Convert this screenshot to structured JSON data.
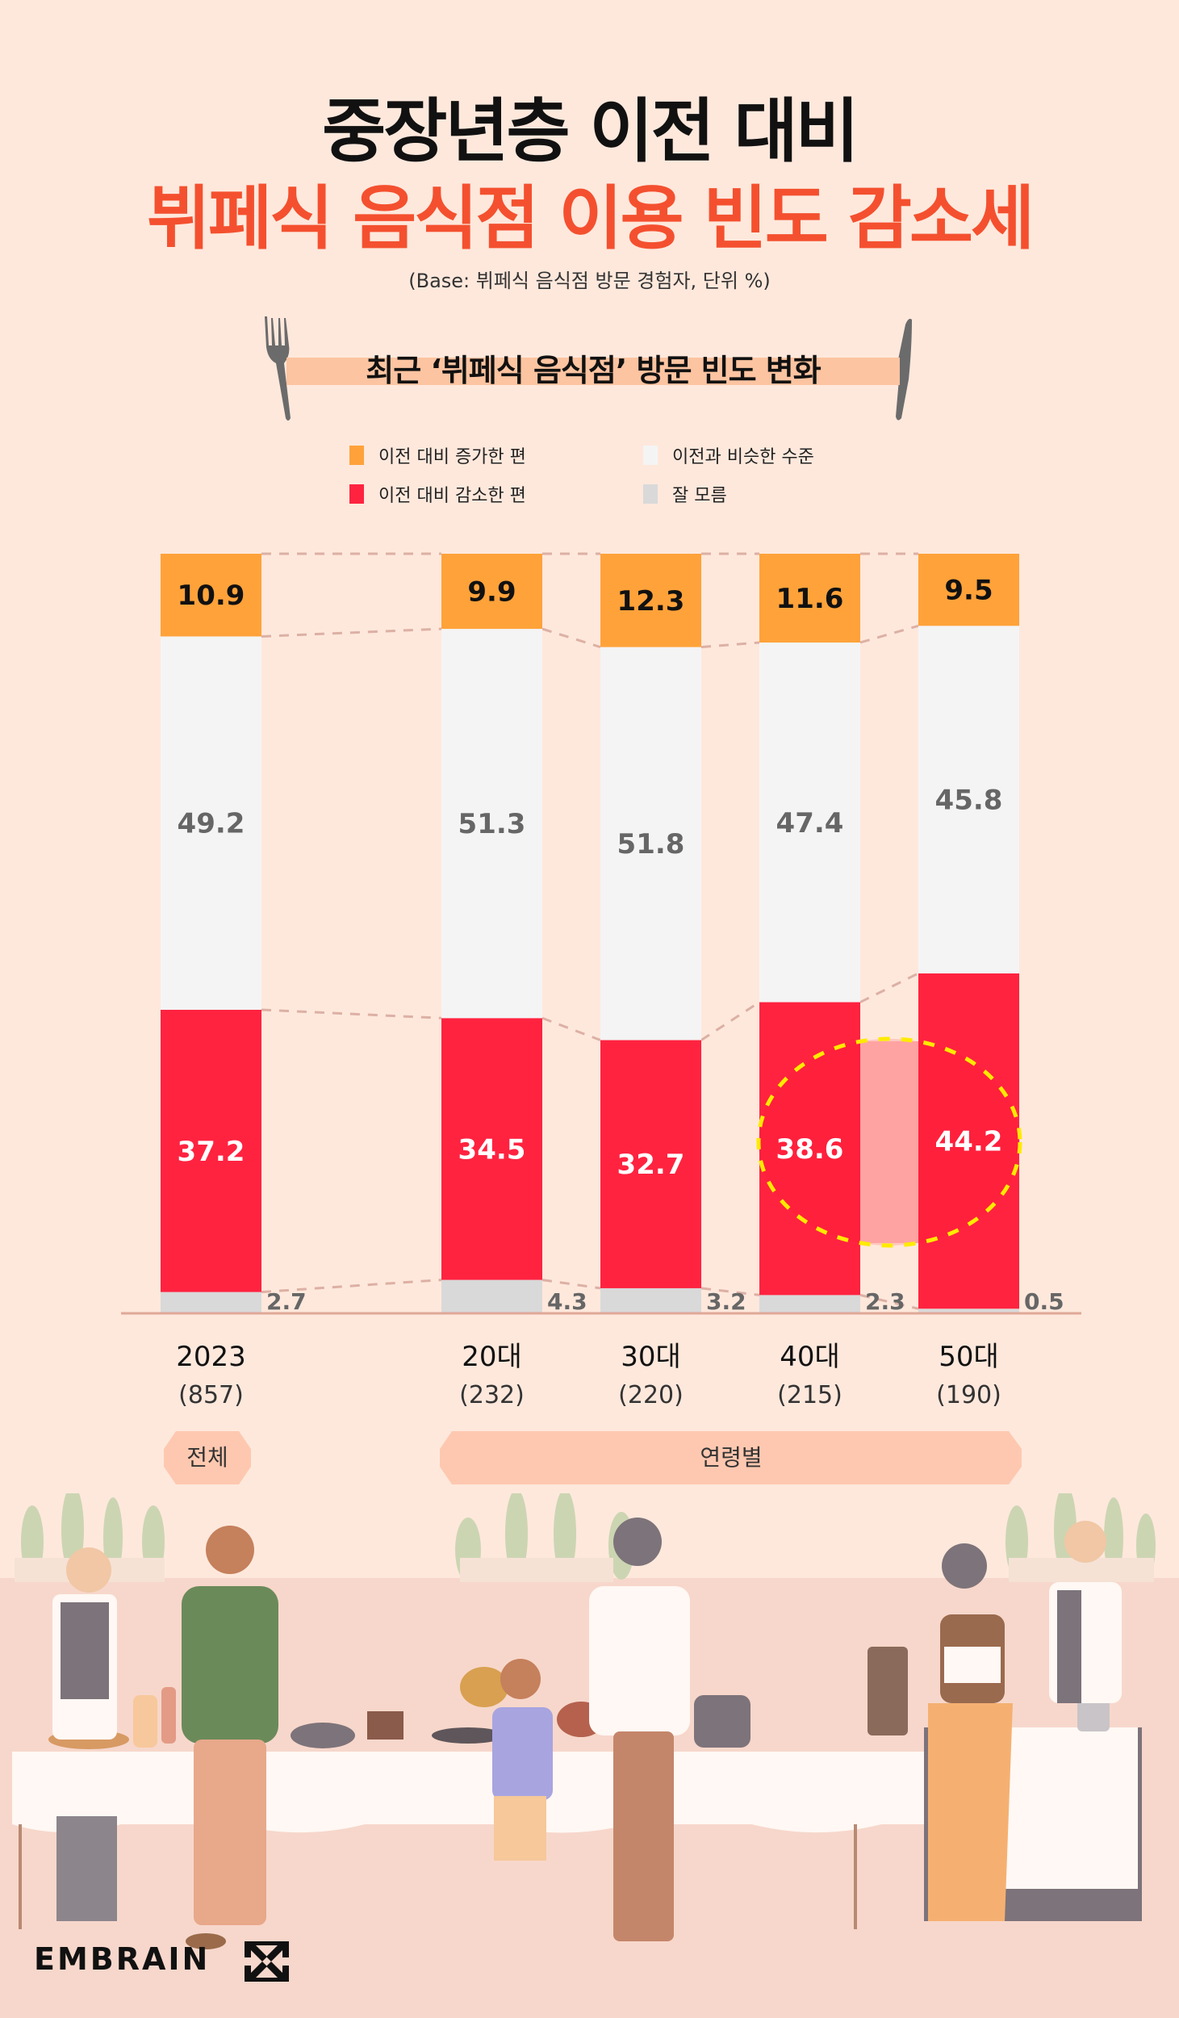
{
  "header": {
    "title_line1": "중장년층 이전 대비",
    "title_line2": "뷔페식 음식점 이용 빈도 감소세",
    "base_note": "(Base: 뷔페식 음식점 방문 경험자, 단위 %)",
    "subtitle": "최근 ‘뷔페식 음식점’ 방문 빈도 변화",
    "title_accent_color": "#f4502f"
  },
  "legend": [
    {
      "label": "이전 대비 증가한 편",
      "color": "#ffa23a"
    },
    {
      "label": "이전과 비슷한 수준",
      "color": "#f4f4f4"
    },
    {
      "label": "이전 대비 감소한 편",
      "color": "#ff2340"
    },
    {
      "label": "잘 모름",
      "color": "#d9d9d9"
    }
  ],
  "groups": {
    "total_label": "전체",
    "age_label": "연령별"
  },
  "brand": {
    "logo_text": "EMBRAIN"
  },
  "chart_data": {
    "type": "bar",
    "stacked": true,
    "percent_stacked": true,
    "title": "최근 ‘뷔페식 음식점’ 방문 빈도 변화",
    "unit": "%",
    "categories": [
      "2023",
      "20대",
      "30대",
      "40대",
      "50대"
    ],
    "sample_sizes": [
      "(857)",
      "(232)",
      "(220)",
      "(215)",
      "(190)"
    ],
    "category_groups": [
      {
        "label": "전체",
        "categories": [
          "2023"
        ]
      },
      {
        "label": "연령별",
        "categories": [
          "20대",
          "30대",
          "40대",
          "50대"
        ]
      }
    ],
    "series": [
      {
        "name": "잘 모름",
        "color": "#d9d9d9",
        "values": [
          2.7,
          4.3,
          3.2,
          2.3,
          0.5
        ]
      },
      {
        "name": "이전 대비 감소한 편",
        "color": "#ff2340",
        "values": [
          37.2,
          34.5,
          32.7,
          38.6,
          44.2
        ]
      },
      {
        "name": "이전과 비슷한 수준",
        "color": "#f4f4f4",
        "values": [
          49.2,
          51.3,
          51.8,
          47.4,
          45.8
        ]
      },
      {
        "name": "이전 대비 증가한 편",
        "color": "#ffa23a",
        "values": [
          10.9,
          9.9,
          12.3,
          11.6,
          9.5
        ]
      }
    ],
    "highlight": {
      "categories": [
        "40대",
        "50대"
      ],
      "series": "이전 대비 감소한 편",
      "style": "dashed yellow ellipse"
    },
    "ylim": [
      0,
      100
    ],
    "grid": false,
    "legend_position": "top"
  }
}
